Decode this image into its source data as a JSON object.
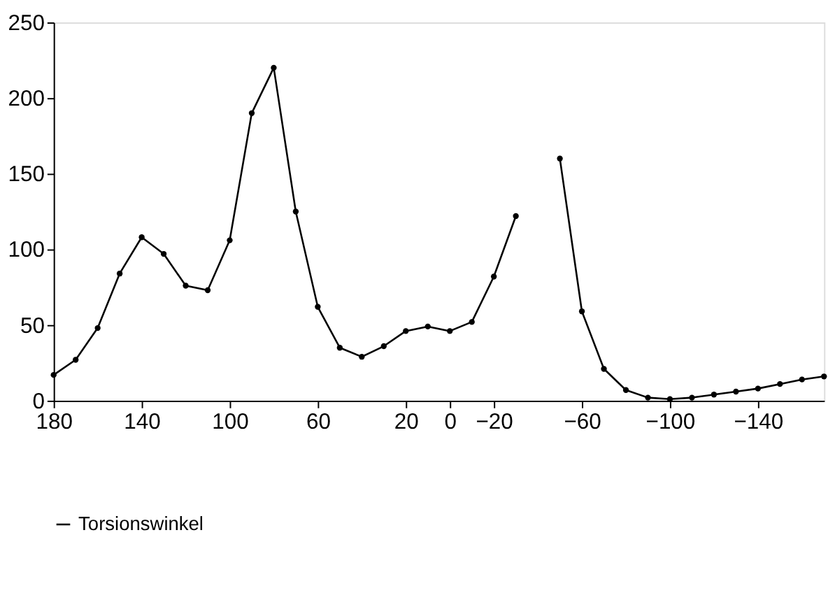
{
  "chart_data": {
    "type": "line",
    "x": [
      180,
      170,
      160,
      150,
      140,
      130,
      120,
      110,
      100,
      90,
      80,
      70,
      60,
      50,
      40,
      30,
      20,
      10,
      0,
      -10,
      -20,
      -30,
      -40,
      -50,
      -60,
      -70,
      -80,
      -90,
      -100,
      -110,
      -120,
      -130,
      -140,
      -150,
      -160,
      -170
    ],
    "series": [
      {
        "name": "Torsionswinkel",
        "color": "#000000",
        "values": [
          17,
          27,
          48,
          84,
          108,
          97,
          76,
          73,
          106,
          190,
          220,
          125,
          62,
          35,
          29,
          36,
          46,
          49,
          46,
          52,
          82,
          122,
          null,
          160,
          59,
          21,
          7,
          2,
          1,
          2,
          4,
          6,
          8,
          11,
          14,
          16
        ]
      }
    ],
    "xlim": [
      180,
      -170
    ],
    "xticks": [
      180,
      140,
      100,
      60,
      20,
      0,
      -20,
      -60,
      -100,
      -140
    ],
    "ylim": [
      0,
      250
    ],
    "yticks": [
      0,
      50,
      100,
      150,
      200,
      250
    ],
    "grid": false,
    "legend": "bottom",
    "marker": "circle",
    "line_style": "solid"
  }
}
